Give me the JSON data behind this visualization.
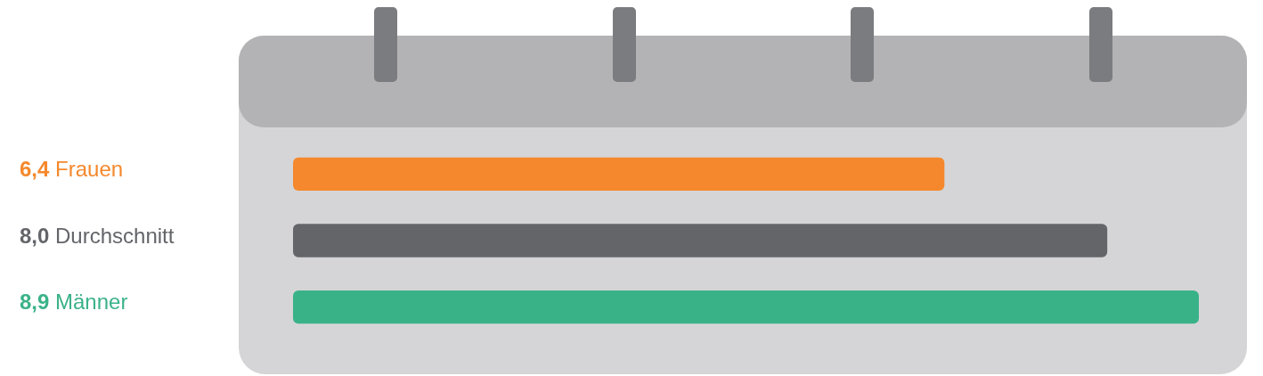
{
  "chart_data": {
    "type": "bar",
    "orientation": "horizontal",
    "categories": [
      "Frauen",
      "Durchschnitt",
      "Männer"
    ],
    "values": [
      6.4,
      8.0,
      8.9
    ],
    "colors": [
      "#f5882c",
      "#636569",
      "#3ab288"
    ],
    "value_labels": [
      "6,4",
      "8,0",
      "8,9"
    ],
    "tick_labels": false,
    "legend": false
  }
}
